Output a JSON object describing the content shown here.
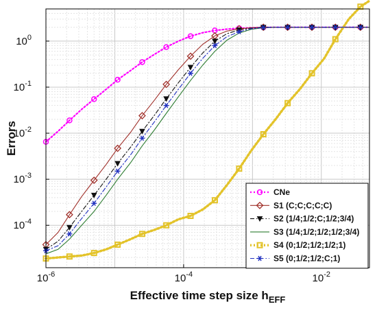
{
  "chart_data": {
    "type": "line",
    "xscale": "log",
    "yscale": "log",
    "xlim": [
      1e-06,
      0.05
    ],
    "ylim": [
      1.2e-05,
      5
    ],
    "xlabel": "Effective time step size h",
    "xlabel_sub": "EFF",
    "ylabel": "Errors",
    "xticks": [
      {
        "value": 1e-06,
        "base": "10",
        "exp": "-6"
      },
      {
        "value": 0.0001,
        "base": "10",
        "exp": "-4"
      },
      {
        "value": 0.01,
        "base": "10",
        "exp": "-2"
      }
    ],
    "yticks": [
      {
        "value": 0.0001,
        "base": "10",
        "exp": "-4"
      },
      {
        "value": 0.001,
        "base": "10",
        "exp": "-3"
      },
      {
        "value": 0.01,
        "base": "10",
        "exp": "-2"
      },
      {
        "value": 0.1,
        "base": "10",
        "exp": "-1"
      },
      {
        "value": 1,
        "base": "10",
        "exp": "0"
      }
    ],
    "grid": true,
    "legend_position": "bottom-right",
    "series": [
      {
        "name": "CNe",
        "color": "#ff00ff",
        "linestyle": "dotted",
        "marker": "circle",
        "x": [
          1e-06,
          1.5e-06,
          2.2e-06,
          3.3e-06,
          5e-06,
          7.5e-06,
          1.1e-05,
          1.7e-05,
          2.5e-05,
          3.8e-05,
          5.6e-05,
          8.4e-05,
          0.000126,
          0.000189,
          0.000284,
          0.000426,
          0.00064,
          0.00096,
          0.00144,
          0.00216,
          0.00324,
          0.00486,
          0.0073,
          0.011,
          0.016,
          0.025,
          0.037,
          0.05
        ],
        "y": [
          0.0065,
          0.011,
          0.019,
          0.033,
          0.055,
          0.09,
          0.145,
          0.23,
          0.35,
          0.52,
          0.74,
          1.0,
          1.28,
          1.52,
          1.7,
          1.82,
          1.9,
          1.95,
          1.98,
          2.0,
          2.0,
          2.0,
          2.0,
          2.0,
          2.0,
          2.0,
          2.0,
          2.0
        ],
        "marker_every": 2
      },
      {
        "name": "S1 (C;C;C;C;C)",
        "color": "#a0302a",
        "linestyle": "solid",
        "marker": "diamond",
        "x": [
          1e-06,
          1.5e-06,
          2.2e-06,
          3.3e-06,
          5e-06,
          7.5e-06,
          1.1e-05,
          1.7e-05,
          2.5e-05,
          3.8e-05,
          5.6e-05,
          8.4e-05,
          0.000126,
          0.000189,
          0.000284,
          0.000426,
          0.00064,
          0.00096,
          0.00144,
          0.00216,
          0.00324,
          0.00486,
          0.0073,
          0.011,
          0.016,
          0.025,
          0.037,
          0.05
        ],
        "y": [
          3.8e-05,
          7e-05,
          0.00017,
          0.00042,
          0.00095,
          0.0021,
          0.0047,
          0.0105,
          0.024,
          0.053,
          0.115,
          0.24,
          0.47,
          0.85,
          1.3,
          1.65,
          1.85,
          1.95,
          2.0,
          2.0,
          2.0,
          2.0,
          2.0,
          2.0,
          2.0,
          2.0,
          2.0,
          2.0
        ],
        "marker_every": 2
      },
      {
        "name": "S2 (1/4;1/2;C;1/2;3/4)",
        "color": "#111111",
        "linestyle": "dashdot",
        "marker": "triangle-down",
        "x": [
          1e-06,
          1.5e-06,
          2.2e-06,
          3.3e-06,
          5e-06,
          7.5e-06,
          1.1e-05,
          1.7e-05,
          2.5e-05,
          3.8e-05,
          5.6e-05,
          8.4e-05,
          0.000126,
          0.000189,
          0.000284,
          0.000426,
          0.00064,
          0.00096,
          0.00144,
          0.00216,
          0.00324,
          0.00486,
          0.0073,
          0.011,
          0.016,
          0.025,
          0.037,
          0.05
        ],
        "y": [
          3e-05,
          4.5e-05,
          9e-05,
          0.0002,
          0.00045,
          0.001,
          0.0022,
          0.005,
          0.011,
          0.025,
          0.056,
          0.125,
          0.27,
          0.55,
          1.0,
          1.45,
          1.75,
          1.92,
          2.0,
          2.0,
          2.0,
          2.0,
          2.0,
          2.0,
          2.0,
          2.0,
          2.0,
          2.0
        ],
        "marker_every": 2
      },
      {
        "name": "S3 (1/4;1/2;1/2;1/2;3/4)",
        "color": "#2e7d32",
        "linestyle": "solid",
        "marker": "none",
        "x": [
          1e-06,
          1.5e-06,
          2.2e-06,
          3.3e-06,
          5e-06,
          7.5e-06,
          1.1e-05,
          1.7e-05,
          2.5e-05,
          3.8e-05,
          5.6e-05,
          8.4e-05,
          0.000126,
          0.000189,
          0.000284,
          0.000426,
          0.00064,
          0.00096,
          0.00144,
          0.00216,
          0.00324,
          0.00486,
          0.0073,
          0.011,
          0.016,
          0.025,
          0.037,
          0.05
        ],
        "y": [
          2.4e-05,
          3e-05,
          5e-05,
          0.0001,
          0.0002,
          0.00045,
          0.001,
          0.0023,
          0.0053,
          0.012,
          0.027,
          0.062,
          0.14,
          0.3,
          0.6,
          1.05,
          1.5,
          1.8,
          1.95,
          2.0,
          2.0,
          2.0,
          2.0,
          2.0,
          2.0,
          2.0,
          2.0,
          2.0
        ],
        "marker_every": 0
      },
      {
        "name": "S4 (0;1/2;1/2;1/2;1)",
        "color": "#e3c32a",
        "linestyle": "dotted",
        "marker": "square",
        "x": [
          1e-06,
          1.5e-06,
          2.2e-06,
          3.3e-06,
          5e-06,
          7.5e-06,
          1.1e-05,
          1.7e-05,
          2.5e-05,
          3.8e-05,
          5.6e-05,
          8.4e-05,
          0.000126,
          0.000189,
          0.000284,
          0.000426,
          0.00064,
          0.00096,
          0.00144,
          0.00216,
          0.00324,
          0.00486,
          0.0073,
          0.011,
          0.016,
          0.025,
          0.037,
          0.05
        ],
        "y": [
          1.9e-05,
          2e-05,
          2.1e-05,
          2.2e-05,
          2.5e-05,
          3e-05,
          3.8e-05,
          5e-05,
          6.5e-05,
          8e-05,
          0.0001,
          0.000135,
          0.00016,
          0.00022,
          0.00035,
          0.00075,
          0.0017,
          0.0042,
          0.0095,
          0.02,
          0.045,
          0.09,
          0.2,
          0.42,
          1.1,
          3.0,
          5.6,
          7.5
        ],
        "marker_every": 2
      },
      {
        "name": "S5 (0;1/2;1/2;C;1)",
        "color": "#1f2fbf",
        "linestyle": "dashdot",
        "marker": "star",
        "x": [
          1e-06,
          1.5e-06,
          2.2e-06,
          3.3e-06,
          5e-06,
          7.5e-06,
          1.1e-05,
          1.7e-05,
          2.5e-05,
          3.8e-05,
          5.6e-05,
          8.4e-05,
          0.000126,
          0.000189,
          0.000284,
          0.000426,
          0.00064,
          0.00096,
          0.00144,
          0.00216,
          0.00324,
          0.00486,
          0.0073,
          0.011,
          0.016,
          0.025,
          0.037,
          0.05
        ],
        "y": [
          2.8e-05,
          3.6e-05,
          6.5e-05,
          0.00014,
          0.0003,
          0.00068,
          0.0015,
          0.0034,
          0.0078,
          0.018,
          0.04,
          0.09,
          0.2,
          0.42,
          0.8,
          1.25,
          1.6,
          1.85,
          1.97,
          2.0,
          2.0,
          2.0,
          2.0,
          2.0,
          2.0,
          2.0,
          2.0,
          2.0
        ],
        "marker_every": 2
      }
    ]
  }
}
